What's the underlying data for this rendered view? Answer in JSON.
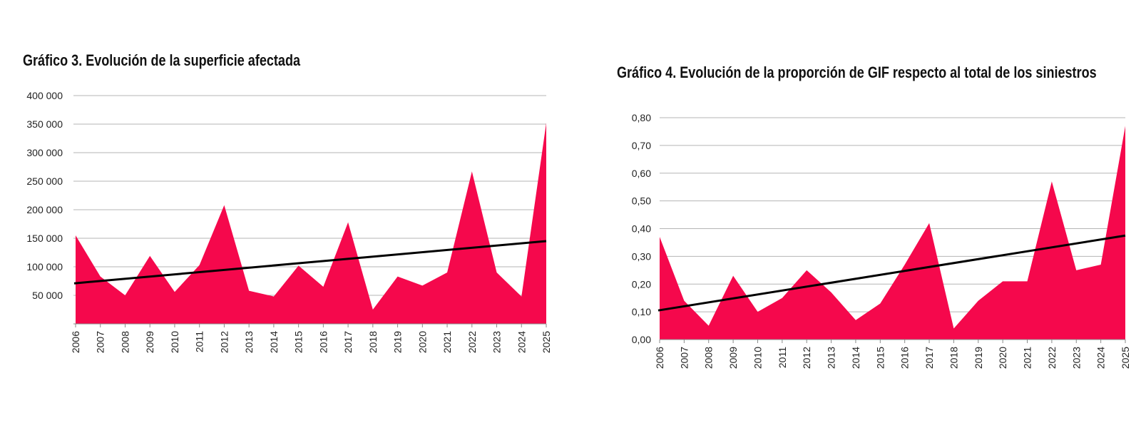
{
  "charts": [
    {
      "title": "Gráfico 3. Evolución de la superficie afectada"
    },
    {
      "title": "Gráfico 4. Evolución de la proporción de GIF respecto al total de los siniestros"
    }
  ],
  "chart_data": [
    {
      "type": "area",
      "title": "Gráfico 3. Evolución de la superficie afectada",
      "xlabel": "",
      "ylabel": "",
      "x": [
        "2006",
        "2007",
        "2008",
        "2009",
        "2010",
        "2011",
        "2012",
        "2013",
        "2014",
        "2015",
        "2016",
        "2017",
        "2018",
        "2019",
        "2020",
        "2021",
        "2022",
        "2023",
        "2024",
        "2025"
      ],
      "series": [
        {
          "name": "",
          "values": [
            155000,
            83000,
            50000,
            119000,
            56000,
            103000,
            208000,
            58000,
            48000,
            102000,
            65000,
            178000,
            25000,
            83000,
            67000,
            90000,
            267000,
            90000,
            48000,
            352000
          ]
        }
      ],
      "trend": {
        "from": 71000,
        "to": 145000
      },
      "ylim": [
        0,
        400000
      ],
      "yticks": [
        50000,
        100000,
        150000,
        200000,
        250000,
        300000,
        350000,
        400000
      ],
      "ytick_labels": [
        "50 000",
        "100 000",
        "150 000",
        "200 000",
        "250 000",
        "300 000",
        "350 000",
        "400 000"
      ],
      "grid": true,
      "area_color": "#f5084c",
      "trend_color": "#000000",
      "grid_color": "#b5b5b5"
    },
    {
      "type": "area",
      "title": "Gráfico 4. Evolución de la proporción de GIF respecto al total de los siniestros",
      "xlabel": "",
      "ylabel": "",
      "x": [
        "2006",
        "2007",
        "2008",
        "2009",
        "2010",
        "2011",
        "2012",
        "2013",
        "2014",
        "2015",
        "2016",
        "2017",
        "2018",
        "2019",
        "2020",
        "2021",
        "2022",
        "2023",
        "2024",
        "2025"
      ],
      "series": [
        {
          "name": "",
          "values": [
            0.37,
            0.14,
            0.05,
            0.23,
            0.1,
            0.15,
            0.25,
            0.17,
            0.07,
            0.13,
            0.27,
            0.42,
            0.04,
            0.14,
            0.21,
            0.21,
            0.57,
            0.25,
            0.27,
            0.77
          ]
        }
      ],
      "trend": {
        "from": 0.105,
        "to": 0.375
      },
      "ylim": [
        0,
        0.8
      ],
      "yticks": [
        0,
        0.1,
        0.2,
        0.3,
        0.4,
        0.5,
        0.6,
        0.7,
        0.8
      ],
      "ytick_labels": [
        "0,00",
        "0,10",
        "0,20",
        "0,30",
        "0,40",
        "0,50",
        "0,60",
        "0,70",
        "0,80"
      ],
      "grid": true,
      "area_color": "#f5084c",
      "trend_color": "#000000",
      "grid_color": "#b5b5b5"
    }
  ]
}
